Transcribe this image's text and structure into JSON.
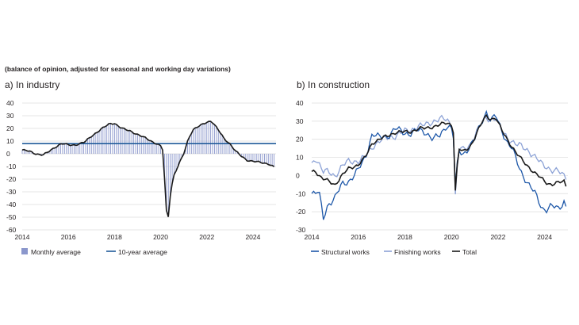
{
  "subtitle": "(balance of opinion, adjusted for seasonal and working day variations)",
  "colors": {
    "bars": "#8b97cc",
    "ten_year": "#1f5a99",
    "total": "#1a1a1a",
    "structural": "#1d57a8",
    "finishing": "#8ca2d6",
    "grid": "#dcdcdc"
  },
  "chart_data": [
    {
      "id": "industry",
      "title": "a)  In industry",
      "type": "bar+line",
      "x_range": [
        2014,
        2025
      ],
      "xticks": [
        2014,
        2016,
        2018,
        2020,
        2022,
        2024
      ],
      "ylim": [
        -60,
        40
      ],
      "yticks": [
        40,
        30,
        20,
        10,
        0,
        -10,
        -20,
        -30,
        -40,
        -50,
        -60
      ],
      "ten_year_average": 8,
      "legend": [
        "Monthly average",
        "10-year average"
      ],
      "monthly_keypoints": [
        [
          2014.0,
          3
        ],
        [
          2014.3,
          2
        ],
        [
          2014.6,
          0
        ],
        [
          2014.9,
          -1
        ],
        [
          2015.1,
          1
        ],
        [
          2015.4,
          5
        ],
        [
          2015.7,
          8
        ],
        [
          2016.0,
          7
        ],
        [
          2016.3,
          7
        ],
        [
          2016.7,
          9
        ],
        [
          2017.0,
          14
        ],
        [
          2017.4,
          19
        ],
        [
          2017.8,
          24
        ],
        [
          2018.0,
          24
        ],
        [
          2018.3,
          20
        ],
        [
          2018.7,
          18
        ],
        [
          2019.0,
          15
        ],
        [
          2019.4,
          12
        ],
        [
          2019.8,
          8
        ],
        [
          2020.0,
          6
        ],
        [
          2020.08,
          4
        ],
        [
          2020.17,
          -20
        ],
        [
          2020.25,
          -45
        ],
        [
          2020.33,
          -50
        ],
        [
          2020.42,
          -32
        ],
        [
          2020.55,
          -18
        ],
        [
          2020.8,
          -8
        ],
        [
          2021.0,
          0
        ],
        [
          2021.2,
          12
        ],
        [
          2021.4,
          19
        ],
        [
          2021.7,
          22
        ],
        [
          2022.0,
          25
        ],
        [
          2022.2,
          26
        ],
        [
          2022.45,
          20
        ],
        [
          2022.75,
          12
        ],
        [
          2023.0,
          8
        ],
        [
          2023.25,
          2
        ],
        [
          2023.5,
          -2
        ],
        [
          2023.75,
          -5
        ],
        [
          2024.0,
          -6
        ],
        [
          2024.4,
          -7
        ],
        [
          2024.7,
          -8
        ],
        [
          2024.95,
          -11
        ]
      ]
    },
    {
      "id": "construction",
      "title": "b)  In construction",
      "type": "line",
      "x_range": [
        2014,
        2025
      ],
      "xticks": [
        2014,
        2016,
        2018,
        2020,
        2022,
        2024
      ],
      "ylim": [
        -30,
        40
      ],
      "yticks": [
        40,
        30,
        20,
        10,
        0,
        -10,
        -20,
        -30
      ],
      "legend": [
        "Structural works",
        "Finishing works",
        "Total"
      ],
      "series": [
        {
          "name": "Structural works",
          "keypoints": [
            [
              2014.0,
              -9
            ],
            [
              2014.15,
              -10
            ],
            [
              2014.3,
              -8
            ],
            [
              2014.5,
              -24
            ],
            [
              2014.7,
              -16
            ],
            [
              2015.0,
              -12
            ],
            [
              2015.3,
              -5
            ],
            [
              2015.6,
              -3
            ],
            [
              2016.0,
              3
            ],
            [
              2016.3,
              10
            ],
            [
              2016.6,
              23
            ],
            [
              2016.9,
              21
            ],
            [
              2017.3,
              22
            ],
            [
              2017.6,
              26
            ],
            [
              2017.9,
              24
            ],
            [
              2018.2,
              23
            ],
            [
              2018.6,
              25
            ],
            [
              2018.9,
              24
            ],
            [
              2019.2,
              20
            ],
            [
              2019.5,
              22
            ],
            [
              2019.8,
              28
            ],
            [
              2020.0,
              26
            ],
            [
              2020.1,
              20
            ],
            [
              2020.17,
              -8
            ],
            [
              2020.3,
              14
            ],
            [
              2020.5,
              12
            ],
            [
              2020.8,
              16
            ],
            [
              2021.0,
              20
            ],
            [
              2021.3,
              30
            ],
            [
              2021.5,
              35
            ],
            [
              2021.7,
              30
            ],
            [
              2021.9,
              33
            ],
            [
              2022.0,
              30
            ],
            [
              2022.2,
              24
            ],
            [
              2022.4,
              18
            ],
            [
              2022.6,
              15
            ],
            [
              2022.8,
              8
            ],
            [
              2023.0,
              2
            ],
            [
              2023.3,
              -5
            ],
            [
              2023.6,
              -10
            ],
            [
              2023.9,
              -18
            ],
            [
              2024.1,
              -19
            ],
            [
              2024.3,
              -17
            ],
            [
              2024.6,
              -18
            ],
            [
              2024.85,
              -14
            ],
            [
              2024.95,
              -19
            ]
          ]
        },
        {
          "name": "Finishing works",
          "keypoints": [
            [
              2014.0,
              6
            ],
            [
              2014.15,
              10
            ],
            [
              2014.3,
              7
            ],
            [
              2014.5,
              2
            ],
            [
              2014.7,
              2
            ],
            [
              2015.0,
              0
            ],
            [
              2015.3,
              5
            ],
            [
              2015.6,
              8
            ],
            [
              2016.0,
              8
            ],
            [
              2016.3,
              10
            ],
            [
              2016.6,
              16
            ],
            [
              2016.9,
              19
            ],
            [
              2017.3,
              21
            ],
            [
              2017.6,
              22
            ],
            [
              2017.9,
              24
            ],
            [
              2018.2,
              25
            ],
            [
              2018.6,
              27
            ],
            [
              2018.9,
              28
            ],
            [
              2019.2,
              30
            ],
            [
              2019.5,
              31
            ],
            [
              2019.8,
              31
            ],
            [
              2020.0,
              28
            ],
            [
              2020.1,
              24
            ],
            [
              2020.17,
              -13
            ],
            [
              2020.3,
              15
            ],
            [
              2020.5,
              14
            ],
            [
              2020.8,
              17
            ],
            [
              2021.0,
              22
            ],
            [
              2021.3,
              29
            ],
            [
              2021.5,
              32
            ],
            [
              2021.7,
              31
            ],
            [
              2021.9,
              32
            ],
            [
              2022.0,
              28
            ],
            [
              2022.2,
              24
            ],
            [
              2022.4,
              21
            ],
            [
              2022.6,
              19
            ],
            [
              2022.8,
              17
            ],
            [
              2023.0,
              16
            ],
            [
              2023.3,
              14
            ],
            [
              2023.6,
              10
            ],
            [
              2023.9,
              6
            ],
            [
              2024.1,
              5
            ],
            [
              2024.3,
              3
            ],
            [
              2024.6,
              2
            ],
            [
              2024.85,
              0
            ],
            [
              2024.95,
              -1
            ]
          ]
        },
        {
          "name": "Total",
          "keypoints": [
            [
              2014.0,
              2
            ],
            [
              2014.15,
              3
            ],
            [
              2014.3,
              0
            ],
            [
              2014.5,
              -2
            ],
            [
              2014.7,
              -3
            ],
            [
              2015.0,
              -5
            ],
            [
              2015.3,
              0
            ],
            [
              2015.6,
              4
            ],
            [
              2016.0,
              6
            ],
            [
              2016.3,
              10
            ],
            [
              2016.6,
              18
            ],
            [
              2016.9,
              20
            ],
            [
              2017.3,
              22
            ],
            [
              2017.6,
              24
            ],
            [
              2017.9,
              24
            ],
            [
              2018.2,
              24
            ],
            [
              2018.6,
              26
            ],
            [
              2018.9,
              26
            ],
            [
              2019.2,
              27
            ],
            [
              2019.5,
              28
            ],
            [
              2019.8,
              29
            ],
            [
              2020.0,
              28
            ],
            [
              2020.1,
              24
            ],
            [
              2020.17,
              -10
            ],
            [
              2020.3,
              15
            ],
            [
              2020.5,
              13
            ],
            [
              2020.8,
              16
            ],
            [
              2021.0,
              21
            ],
            [
              2021.3,
              29
            ],
            [
              2021.5,
              33
            ],
            [
              2021.7,
              31
            ],
            [
              2021.9,
              32
            ],
            [
              2022.0,
              29
            ],
            [
              2022.2,
              24
            ],
            [
              2022.4,
              20
            ],
            [
              2022.6,
              16
            ],
            [
              2022.8,
              12
            ],
            [
              2023.0,
              9
            ],
            [
              2023.3,
              5
            ],
            [
              2023.6,
              1
            ],
            [
              2023.9,
              -2
            ],
            [
              2024.1,
              -4
            ],
            [
              2024.3,
              -5
            ],
            [
              2024.6,
              -4
            ],
            [
              2024.85,
              -3
            ],
            [
              2024.95,
              -7
            ]
          ]
        }
      ]
    }
  ]
}
